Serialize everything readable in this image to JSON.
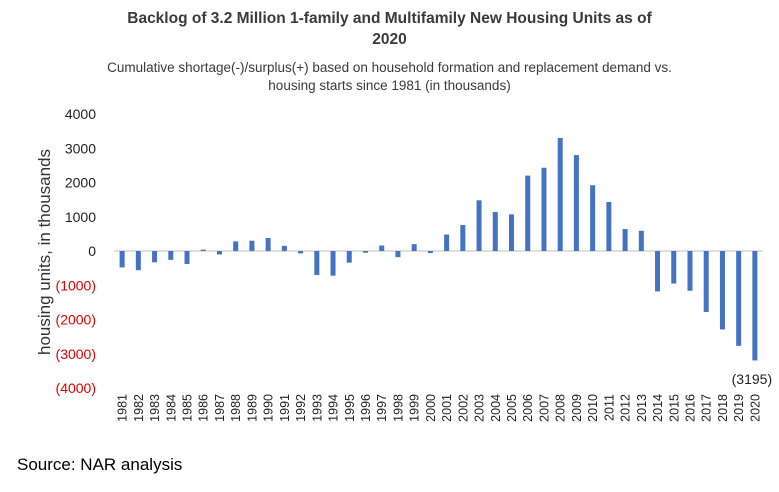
{
  "chart_data": {
    "type": "bar",
    "title_lines": [
      "Backlog of 3.2 Million 1-family and Multifamily New Housing Units as of",
      "2020"
    ],
    "subtitle_lines": [
      "Cumulative shortage(-)/surplus(+) based on household formation and replacement demand vs.",
      "housing starts since 1981 (in thousands)"
    ],
    "ylabel": "housing units, in thousands",
    "xlabel": "",
    "ylim": [
      -4000,
      4000
    ],
    "yticks": [
      4000,
      3000,
      2000,
      1000,
      0,
      -1000,
      -2000,
      -3000,
      -4000
    ],
    "ytick_labels": [
      "4000",
      "3000",
      "2000",
      "1000",
      "0",
      "(1000)",
      "(2000)",
      "(3000)",
      "(4000)"
    ],
    "categories": [
      "1981",
      "1982",
      "1983",
      "1984",
      "1985",
      "1986",
      "1987",
      "1988",
      "1989",
      "1990",
      "1991",
      "1992",
      "1993",
      "1994",
      "1995",
      "1996",
      "1997",
      "1998",
      "1999",
      "2000",
      "2001",
      "2002",
      "2003",
      "2004",
      "2005",
      "2006",
      "2007",
      "2008",
      "2009",
      "2010",
      "2011",
      "2012",
      "2013",
      "2014",
      "2015",
      "2016",
      "2017",
      "2018",
      "2019",
      "2020"
    ],
    "values": [
      -480,
      -560,
      -330,
      -260,
      -380,
      40,
      -100,
      280,
      300,
      380,
      150,
      -70,
      -700,
      -720,
      -340,
      -50,
      160,
      -180,
      200,
      -60,
      480,
      760,
      1480,
      1140,
      1070,
      2200,
      2430,
      3300,
      2800,
      1920,
      1430,
      640,
      590,
      -1180,
      -950,
      -1160,
      -1780,
      -2290,
      -2770,
      -3195
    ],
    "bar_color": "#4472c4",
    "positive_tick_color": "#222222",
    "negative_tick_color": "#e00000",
    "annotation": {
      "category": "2020",
      "text": "(3195)"
    }
  },
  "source": "Source: NAR analysis"
}
